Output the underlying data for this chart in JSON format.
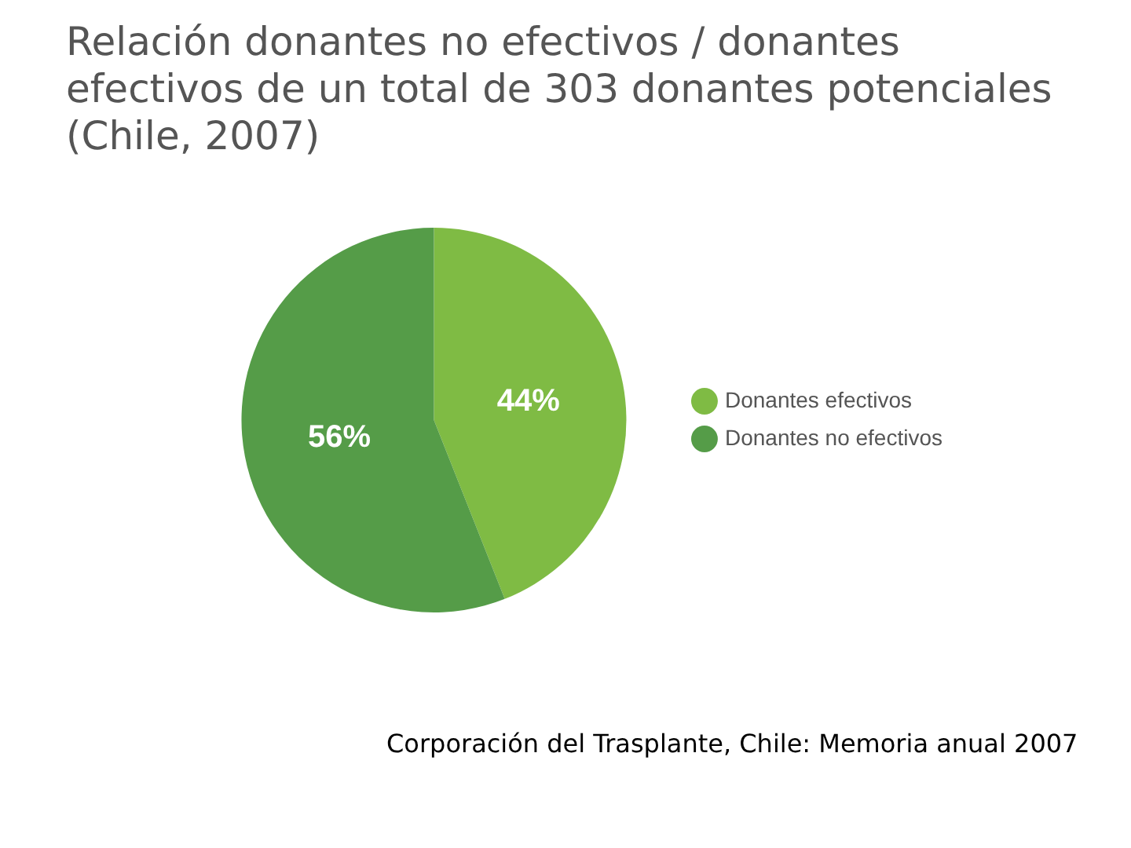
{
  "chart_data": {
    "type": "pie",
    "title": "Relación donantes no efectivos / donantes efectivos de un total de 303 donantes potenciales (Chile, 2007)",
    "categories": [
      "Donantes efectivos",
      "Donantes no efectivos"
    ],
    "values": [
      44,
      56
    ],
    "colors": [
      "#7fbb44",
      "#559c48"
    ],
    "value_labels": [
      "44%",
      "56%"
    ],
    "legend": "right",
    "annotations": [
      "Corporación del Trasplante, Chile: Memoria anual 2007"
    ]
  }
}
